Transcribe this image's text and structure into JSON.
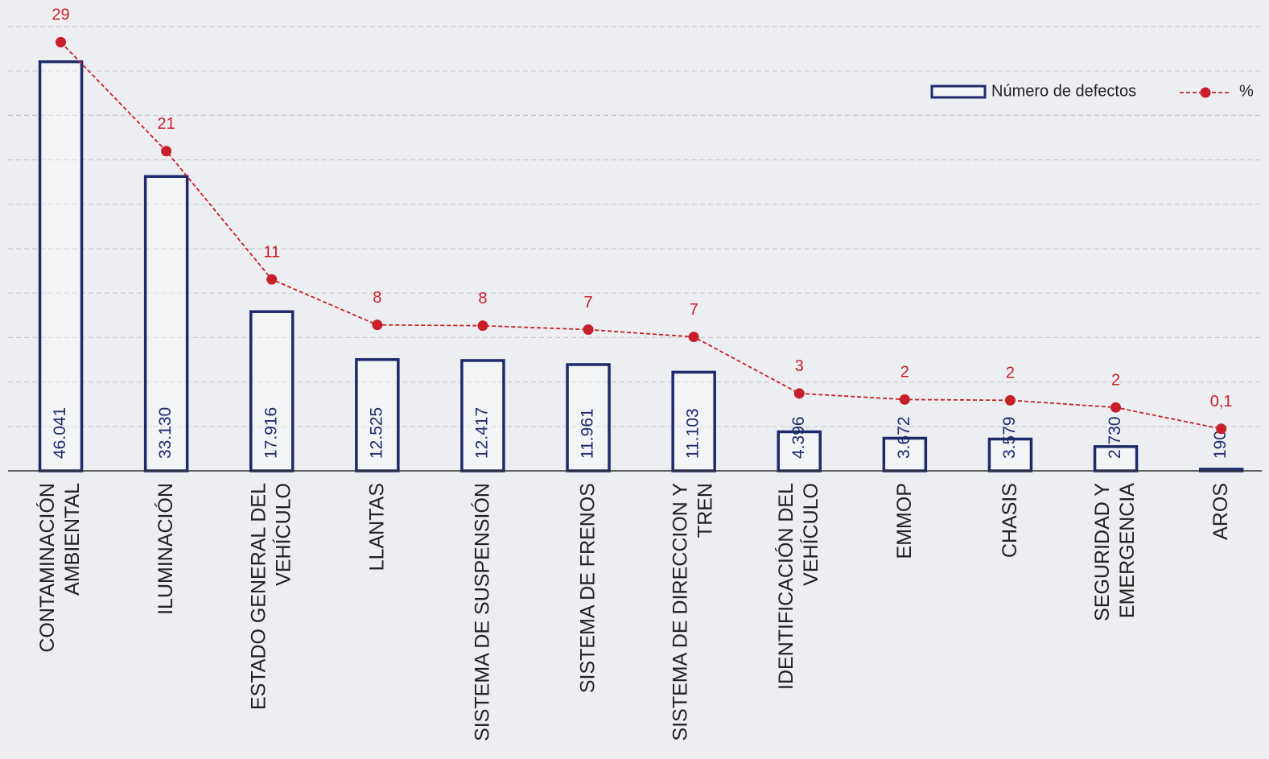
{
  "chart_data": {
    "type": "bar_line",
    "categories": [
      "CONTAMINACIÓN AMBIENTAL",
      "ILUMINACIÓN",
      "ESTADO GENERAL DEL VEHÍCULO",
      "LLANTAS",
      "SISTEMA DE SUSPENSIÓN",
      "SISTEMA DE FRENOS",
      "SISTEMA DE DIRECCION Y TREN",
      "IDENTIFICACIÓN DEL VEHÍCULO",
      "EMMOP",
      "CHASIS",
      "SEGURIDAD Y EMERGENCIA",
      "AROS"
    ],
    "series": [
      {
        "name": "Número de defectos",
        "type": "bar",
        "color": "#1f2a6b",
        "values": [
          46041,
          33130,
          17916,
          12525,
          12417,
          11961,
          11103,
          4396,
          3672,
          3579,
          2730,
          190
        ],
        "value_labels": [
          "46.041",
          "33.130",
          "17.916",
          "12.525",
          "12.417",
          "11.961",
          "11.103",
          "4.396",
          "3.672",
          "3.579",
          "2.730",
          "190"
        ]
      },
      {
        "name": "%",
        "type": "line",
        "axis": "y2",
        "color": "#c8202a",
        "values": [
          28.84,
          20.75,
          11.22,
          7.84,
          7.78,
          7.49,
          6.95,
          2.75,
          2.3,
          2.24,
          1.71,
          0.12
        ],
        "value_labels": [
          "29",
          "21",
          "11",
          "8",
          "8",
          "7",
          "7",
          "3",
          "2",
          "2",
          "2",
          "0,1"
        ]
      }
    ],
    "ylim": [
      0,
      50000
    ],
    "yticks": [
      0,
      5000,
      10000,
      15000,
      20000,
      25000,
      30000,
      35000,
      40000,
      45000,
      50000
    ],
    "y2lim": [
      -3,
      30
    ],
    "grid": true,
    "legend": "top-right"
  }
}
